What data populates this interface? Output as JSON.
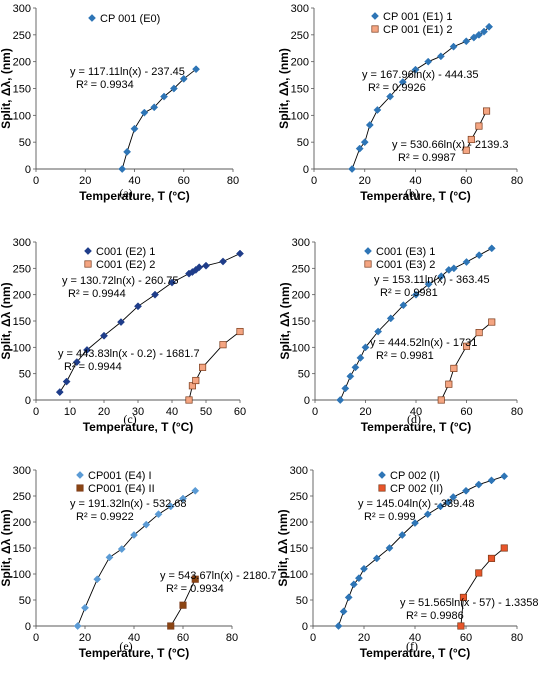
{
  "chart_data": [
    {
      "type": "scatter",
      "letter": "(a)",
      "xlabel": "Temperature, T (°C)",
      "ylabel": "Split, Δλ, (nm)",
      "xlim": [
        0,
        80
      ],
      "ylim": [
        0,
        300
      ],
      "xticks": [
        0,
        20,
        40,
        60,
        80
      ],
      "yticks": [
        0,
        50,
        100,
        150,
        200,
        250,
        300
      ],
      "grid": false,
      "legend_position": "top-right",
      "series": [
        {
          "name": "CP 001 (E0)",
          "marker": "diamond",
          "color": "#2e75b6",
          "x": [
            35,
            37,
            40,
            44,
            48,
            52,
            56,
            60,
            65
          ],
          "y": [
            0,
            32,
            75,
            105,
            115,
            135,
            150,
            168,
            186
          ],
          "fit": {
            "a": 117.11,
            "b": -237.45,
            "shift": 0,
            "equation": "y = 117.11ln(x) - 237.45",
            "r2": "R² = 0.9934"
          }
        }
      ]
    },
    {
      "type": "scatter",
      "letter": "(b)",
      "xlabel": "Temperature, T (°C)",
      "ylabel": "Split, Δλ, (nm)",
      "xlim": [
        0,
        80
      ],
      "ylim": [
        0,
        300
      ],
      "xticks": [
        0,
        20,
        40,
        60,
        80
      ],
      "yticks": [
        0,
        50,
        100,
        150,
        200,
        250,
        300
      ],
      "grid": false,
      "legend_position": "top-right",
      "series": [
        {
          "name": "CP 001 (E1) 1",
          "marker": "diamond",
          "color": "#2e75b6",
          "x": [
            15,
            18,
            20,
            22,
            25,
            30,
            35,
            40,
            45,
            50,
            55,
            60,
            63,
            65,
            67,
            69
          ],
          "y": [
            0,
            38,
            50,
            82,
            110,
            135,
            162,
            185,
            200,
            210,
            228,
            238,
            245,
            250,
            256,
            265
          ],
          "fit": {
            "a": 167.96,
            "b": -444.35,
            "shift": 0,
            "equation": "y = 167.96ln(x) - 444.35",
            "r2": "R² = 0.9926"
          }
        },
        {
          "name": "CP 001 (E1) 2",
          "marker": "square",
          "color": "#f4a582",
          "x": [
            60,
            62,
            65,
            68
          ],
          "y": [
            35,
            55,
            80,
            108
          ],
          "fit": {
            "a": 530.66,
            "b": -2139.3,
            "shift": 0,
            "equation": "y = 530.66ln(x) - 2139.3",
            "r2": "R² = 0.9987"
          }
        }
      ]
    },
    {
      "type": "scatter",
      "letter": "(c)",
      "xlabel": "Temperature, T (°C)",
      "ylabel": "Split, Δλ (nm)",
      "xlim": [
        0,
        60
      ],
      "ylim": [
        0,
        300
      ],
      "xticks": [
        0,
        10,
        20,
        30,
        40,
        50,
        60
      ],
      "yticks": [
        0,
        50,
        100,
        150,
        200,
        250,
        300
      ],
      "grid": false,
      "legend_position": "top-right",
      "series": [
        {
          "name": "C001 (E2) 1",
          "marker": "diamond",
          "color": "#1f3d8a",
          "x": [
            7,
            9,
            12,
            15,
            20,
            25,
            30,
            35,
            40,
            45,
            46,
            47,
            48,
            50,
            55,
            60
          ],
          "y": [
            15,
            35,
            72,
            95,
            122,
            148,
            178,
            200,
            223,
            240,
            243,
            247,
            252,
            255,
            263,
            278
          ],
          "fit": {
            "a": 130.72,
            "b": -260.75,
            "shift": 0,
            "equation": "y = 130.72ln(x) - 260.75",
            "r2": "R² = 0.9944"
          }
        },
        {
          "name": "C001 (E2) 2",
          "marker": "square",
          "color": "#f4a582",
          "x": [
            45,
            46,
            47,
            49,
            55,
            60
          ],
          "y": [
            0,
            27,
            37,
            62,
            105,
            130
          ],
          "fit": {
            "a": 443.83,
            "b": -1681.7,
            "shift": 0.2,
            "equation": "y = 443.83ln(x - 0.2) - 1681.7",
            "r2": "R² = 0.9944"
          }
        }
      ]
    },
    {
      "type": "scatter",
      "letter": "(d)",
      "xlabel": "Temperature, T (°C)",
      "ylabel": "Split, Δλ (nm)",
      "xlim": [
        0,
        80
      ],
      "ylim": [
        0,
        300
      ],
      "xticks": [
        0,
        20,
        40,
        60,
        80
      ],
      "yticks": [
        0,
        50,
        100,
        150,
        200,
        250,
        300
      ],
      "grid": false,
      "legend_position": "top-right",
      "series": [
        {
          "name": "C001 (E3) 1",
          "marker": "diamond",
          "color": "#2e75b6",
          "x": [
            10,
            12,
            14,
            16,
            18,
            20,
            25,
            30,
            35,
            40,
            45,
            50,
            53,
            55,
            60,
            65,
            70
          ],
          "y": [
            0,
            22,
            45,
            62,
            80,
            100,
            130,
            155,
            180,
            200,
            220,
            235,
            247,
            250,
            262,
            275,
            288
          ],
          "fit": {
            "a": 153.11,
            "b": -363.45,
            "shift": 0,
            "equation": "y = 153.11ln(x) - 363.45",
            "r2": "R² = 0.9981"
          }
        },
        {
          "name": "C001 (E3) 2",
          "marker": "square",
          "color": "#f4a582",
          "x": [
            50,
            53,
            55,
            60,
            65,
            70
          ],
          "y": [
            0,
            30,
            60,
            102,
            128,
            148
          ],
          "fit": {
            "a": 444.52,
            "b": -1731,
            "shift": 0,
            "equation": "y = 444.52ln(x) - 1731",
            "r2": "R² = 0.9981"
          }
        }
      ]
    },
    {
      "type": "scatter",
      "letter": "(e)",
      "xlabel": "Temperature, T (°C)",
      "ylabel": "Split, Δλ (nm)",
      "xlim": [
        0,
        80
      ],
      "ylim": [
        0,
        300
      ],
      "xticks": [
        0,
        20,
        40,
        60,
        80
      ],
      "yticks": [
        0,
        50,
        100,
        150,
        200,
        250,
        300
      ],
      "grid": false,
      "legend_position": "top-right",
      "series": [
        {
          "name": "CP001 (E4) I",
          "marker": "diamond",
          "color": "#5b9bd5",
          "x": [
            17,
            20,
            25,
            30,
            35,
            40,
            45,
            50,
            55,
            60,
            65
          ],
          "y": [
            0,
            35,
            90,
            132,
            148,
            175,
            195,
            215,
            230,
            245,
            260
          ],
          "fit": {
            "a": 191.32,
            "b": -532.68,
            "shift": 0,
            "equation": "y = 191.32ln(x) - 532.68",
            "r2": "R² = 0.9922"
          }
        },
        {
          "name": "CP001 (E4) II",
          "marker": "square",
          "color": "#8b4513",
          "x": [
            55,
            60,
            65
          ],
          "y": [
            0,
            40,
            90
          ],
          "fit": {
            "a": 543.67,
            "b": -2180.7,
            "shift": 0,
            "equation": "y = 543.67ln(x) - 2180.7",
            "r2": "R² = 0.9934"
          }
        }
      ]
    },
    {
      "type": "scatter",
      "letter": "(f)",
      "xlabel": "Temperature, T (°C)",
      "ylabel": "Split, Δλ (nm)",
      "xlim": [
        0,
        80
      ],
      "ylim": [
        0,
        300
      ],
      "xticks": [
        0,
        20,
        40,
        60,
        80
      ],
      "yticks": [
        0,
        50,
        100,
        150,
        200,
        250,
        300
      ],
      "grid": false,
      "legend_position": "top-right",
      "series": [
        {
          "name": "CP 002 (I)",
          "marker": "diamond",
          "color": "#2e75b6",
          "x": [
            10,
            12,
            14,
            16,
            18,
            20,
            25,
            30,
            35,
            40,
            45,
            50,
            53,
            55,
            60,
            65,
            70,
            75
          ],
          "y": [
            0,
            28,
            55,
            80,
            92,
            110,
            130,
            150,
            175,
            198,
            215,
            230,
            238,
            248,
            260,
            272,
            280,
            288
          ],
          "fit": {
            "a": 145.04,
            "b": -339.48,
            "shift": 0,
            "equation": "y = 145.04ln(x) - 339.48",
            "r2": "R² = 0.999"
          }
        },
        {
          "name": "CP 002 (II)",
          "marker": "square",
          "color": "#e8552a",
          "x": [
            58,
            59,
            65,
            70,
            75
          ],
          "y": [
            0,
            55,
            102,
            130,
            150
          ],
          "fit": {
            "a": 51.565,
            "b": -1.3358,
            "shift": 57,
            "equation": "y = 51.565ln(x - 57) - 1.3358",
            "r2": "R² = 0.9986"
          }
        }
      ]
    }
  ]
}
